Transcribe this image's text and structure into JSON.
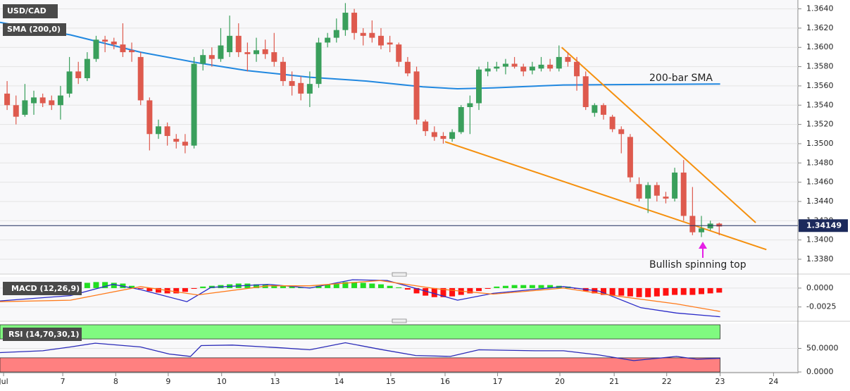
{
  "chart_data": [
    {
      "type": "candlestick",
      "title": "USD/CAD",
      "x": [
        0,
        1,
        2,
        3,
        4,
        5,
        6,
        7,
        8,
        9,
        10,
        11,
        12,
        13,
        14,
        15,
        16,
        17,
        18,
        19,
        20,
        21,
        22,
        23,
        24,
        25,
        26,
        27,
        28,
        29,
        30,
        31,
        32,
        33,
        34,
        35,
        36,
        37,
        38,
        39,
        40,
        41,
        42,
        43,
        44,
        45,
        46,
        47,
        48,
        49,
        50,
        51,
        52,
        53,
        54,
        55,
        56,
        57,
        58,
        59,
        60,
        61,
        62,
        63,
        64,
        65,
        66,
        67,
        68,
        69,
        70,
        71,
        72,
        73,
        74,
        75,
        76,
        77,
        78,
        79,
        80
      ],
      "open": [
        1.3552,
        1.354,
        1.353,
        1.3542,
        1.3548,
        1.3545,
        1.354,
        1.3552,
        1.3575,
        1.3568,
        1.3588,
        1.3608,
        1.3606,
        1.3603,
        1.3597,
        1.359,
        1.3545,
        1.351,
        1.3518,
        1.3505,
        1.3502,
        1.3498,
        1.3583,
        1.3592,
        1.3588,
        1.3595,
        1.3612,
        1.3595,
        1.3593,
        1.3598,
        1.3595,
        1.3585,
        1.3565,
        1.3563,
        1.3552,
        1.3562,
        1.3605,
        1.361,
        1.3618,
        1.3636,
        1.3615,
        1.3615,
        1.3612,
        1.3605,
        1.3603,
        1.3585,
        1.3575,
        1.3523,
        1.3512,
        1.3508,
        1.3505,
        1.3512,
        1.3538,
        1.3542,
        1.3575,
        1.3578,
        1.358,
        1.3583,
        1.358,
        1.3576,
        1.3578,
        1.3582,
        1.3578,
        1.359,
        1.3585,
        1.357,
        1.3532,
        1.354,
        1.3528,
        1.3515,
        1.3507,
        1.3458,
        1.3443,
        1.3457,
        1.3445,
        1.3443,
        1.347,
        1.3425,
        1.3408,
        1.3412,
        1.3417
      ],
      "high": [
        1.3565,
        1.355,
        1.3562,
        1.3555,
        1.3552,
        1.355,
        1.356,
        1.359,
        1.3585,
        1.3595,
        1.3612,
        1.3612,
        1.361,
        1.3625,
        1.3605,
        1.3595,
        1.3548,
        1.3525,
        1.3522,
        1.351,
        1.351,
        1.359,
        1.3598,
        1.36,
        1.362,
        1.3633,
        1.3625,
        1.3605,
        1.361,
        1.3608,
        1.3615,
        1.359,
        1.3575,
        1.357,
        1.3575,
        1.361,
        1.3615,
        1.363,
        1.3646,
        1.364,
        1.362,
        1.3628,
        1.362,
        1.3612,
        1.3605,
        1.359,
        1.358,
        1.3525,
        1.3518,
        1.3512,
        1.3515,
        1.354,
        1.355,
        1.358,
        1.3585,
        1.3585,
        1.3588,
        1.359,
        1.3583,
        1.3585,
        1.359,
        1.3588,
        1.3602,
        1.3595,
        1.359,
        1.3575,
        1.3542,
        1.3542,
        1.353,
        1.3518,
        1.351,
        1.3465,
        1.346,
        1.346,
        1.345,
        1.3475,
        1.3483,
        1.3455,
        1.3425,
        1.342,
        1.3418
      ],
      "low": [
        1.3535,
        1.352,
        1.3528,
        1.353,
        1.3538,
        1.3535,
        1.3525,
        1.3548,
        1.3562,
        1.3565,
        1.3585,
        1.3595,
        1.3598,
        1.359,
        1.3585,
        1.354,
        1.3493,
        1.3505,
        1.3498,
        1.3495,
        1.349,
        1.3495,
        1.3576,
        1.358,
        1.3585,
        1.359,
        1.359,
        1.3575,
        1.3585,
        1.3588,
        1.358,
        1.356,
        1.355,
        1.3545,
        1.3538,
        1.3558,
        1.36,
        1.3605,
        1.3612,
        1.3608,
        1.3602,
        1.3605,
        1.3598,
        1.3595,
        1.358,
        1.357,
        1.352,
        1.3508,
        1.3503,
        1.35,
        1.3502,
        1.351,
        1.351,
        1.3535,
        1.357,
        1.3575,
        1.3572,
        1.3578,
        1.357,
        1.3572,
        1.3575,
        1.3575,
        1.3575,
        1.358,
        1.3555,
        1.3535,
        1.3528,
        1.3525,
        1.3512,
        1.349,
        1.346,
        1.344,
        1.3428,
        1.344,
        1.3438,
        1.344,
        1.342,
        1.3405,
        1.3403,
        1.341,
        1.3405
      ],
      "close": [
        1.354,
        1.3528,
        1.3545,
        1.3548,
        1.3542,
        1.354,
        1.355,
        1.3575,
        1.3568,
        1.3588,
        1.3608,
        1.3606,
        1.3603,
        1.3595,
        1.3595,
        1.3545,
        1.351,
        1.3518,
        1.3508,
        1.3502,
        1.3498,
        1.3583,
        1.3592,
        1.3588,
        1.3602,
        1.3612,
        1.3595,
        1.3593,
        1.3597,
        1.3593,
        1.3585,
        1.3565,
        1.356,
        1.3552,
        1.3562,
        1.3605,
        1.361,
        1.3618,
        1.3636,
        1.3615,
        1.3612,
        1.361,
        1.3602,
        1.3603,
        1.3585,
        1.3573,
        1.3525,
        1.3513,
        1.3507,
        1.3505,
        1.3512,
        1.3538,
        1.3542,
        1.3577,
        1.3578,
        1.358,
        1.3583,
        1.358,
        1.3575,
        1.358,
        1.3582,
        1.3578,
        1.359,
        1.3585,
        1.357,
        1.3538,
        1.354,
        1.353,
        1.3515,
        1.351,
        1.3465,
        1.3443,
        1.3457,
        1.3446,
        1.3443,
        1.347,
        1.3425,
        1.3408,
        1.3412,
        1.3417,
        1.3414
      ],
      "up_color": "#3a9f5c",
      "down_color": "#de5a4e",
      "xlim": [
        -0.8,
        88.6
      ],
      "ylim": [
        1.3369,
        1.3647
      ],
      "yticks": [
        {
          "value": 1.338,
          "label": "1.3380"
        },
        {
          "value": 1.34,
          "label": "1.3400"
        },
        {
          "value": 1.342,
          "label": "1.3420"
        },
        {
          "value": 1.344,
          "label": "1.3440"
        },
        {
          "value": 1.346,
          "label": "1.3460"
        },
        {
          "value": 1.348,
          "label": "1.3480"
        },
        {
          "value": 1.35,
          "label": "1.3500"
        },
        {
          "value": 1.352,
          "label": "1.3520"
        },
        {
          "value": 1.354,
          "label": "1.3540"
        },
        {
          "value": 1.356,
          "label": "1.3560"
        },
        {
          "value": 1.358,
          "label": "1.3580"
        },
        {
          "value": 1.36,
          "label": "1.3600"
        },
        {
          "value": 1.362,
          "label": "1.3620"
        },
        {
          "value": 1.364,
          "label": "1.3640"
        }
      ],
      "grid": true,
      "overlay": {
        "name": "SMA (200,0)",
        "color": "#2188e0",
        "x": [
          -0.8,
          7.1,
          15.0,
          21.4,
          26.9,
          34.0,
          40.4,
          46.7,
          50.6,
          54.6,
          62.5,
          80.1
        ],
        "values": [
          1.3626,
          1.3613,
          1.3595,
          1.3584,
          1.3576,
          1.3569,
          1.3565,
          1.3559,
          1.3557,
          1.3558,
          1.3561,
          1.3562
        ]
      },
      "trendlines": [
        {
          "color": "#f5900e",
          "x": [
            62.3,
            84.1
          ],
          "values": [
            1.36,
            1.3418
          ]
        },
        {
          "color": "#f5900e",
          "x": [
            49.2,
            85.3
          ],
          "values": [
            1.3502,
            1.339
          ]
        }
      ],
      "last_price": {
        "value": 1.34149,
        "color": "#1c2a5c"
      },
      "annotations": [
        {
          "text": "200-bar SMA",
          "color": "#2188e0"
        },
        {
          "text": "Bullish spinning top",
          "color": "#e61ee6"
        }
      ]
    },
    {
      "type": "macd",
      "title": "MACD (12,26,9)",
      "x": [
        0,
        1,
        2,
        3,
        4,
        5,
        6,
        7,
        8,
        9,
        10,
        11,
        12,
        13,
        14,
        15,
        16,
        17,
        18,
        19,
        20,
        21,
        22,
        23,
        24,
        25,
        26,
        27,
        28,
        29,
        30,
        31,
        32,
        33,
        34,
        35,
        36,
        37,
        38,
        39,
        40,
        41,
        42,
        43,
        44,
        45,
        46,
        47,
        48,
        49,
        50,
        51,
        52,
        53,
        54,
        55,
        56,
        57,
        58,
        59,
        60,
        61,
        62,
        63,
        64,
        65,
        66,
        67,
        68,
        69,
        70,
        71,
        72,
        73,
        74,
        75,
        76,
        77,
        78,
        79,
        80
      ],
      "histogram": [
        0.0001,
        0.0001,
        0.0001,
        0.0002,
        0.0002,
        0.0003,
        0.0004,
        0.0005,
        0.0006,
        0.0007,
        0.0008,
        0.0008,
        0.0007,
        0.0006,
        0.0003,
        -0.0001,
        -0.0004,
        -0.0006,
        -0.0007,
        -0.0007,
        -0.0005,
        -0.0001,
        0.0002,
        0.0003,
        0.0004,
        0.0005,
        0.0006,
        0.0006,
        0.0005,
        0.0005,
        0.0004,
        0.0003,
        0.0002,
        0.0001,
        0.0001,
        0.0003,
        0.0005,
        0.0006,
        0.0008,
        0.0008,
        0.0007,
        0.0006,
        0.0005,
        0.0003,
        0.0001,
        -0.0002,
        -0.0007,
        -0.001,
        -0.0012,
        -0.0012,
        -0.0011,
        -0.0009,
        -0.0007,
        -0.0004,
        -0.0001,
        0.0002,
        0.0003,
        0.0004,
        0.0004,
        0.0004,
        0.0004,
        0.0004,
        0.0003,
        0.0002,
        -0.0001,
        -0.0004,
        -0.0007,
        -0.0009,
        -0.001,
        -0.001,
        -0.0011,
        -0.0012,
        -0.0012,
        -0.0011,
        -0.001,
        -0.0009,
        -0.0009,
        -0.0009,
        -0.0008,
        -0.0007,
        -0.0006
      ],
      "up_color": "#22dd22",
      "down_color": "#ff1111",
      "series": [
        {
          "color": "#2a2ac8",
          "x": [
            -0.8,
            7.1,
            11.9,
            15.0,
            20.2,
            22.9,
            29.3,
            34.0,
            38.8,
            42.7,
            46.7,
            50.6,
            54.6,
            62.5,
            66.5,
            71.2,
            75.2,
            80.1
          ],
          "values": [
            -0.0017,
            -0.001,
            0.0005,
            -0.0002,
            -0.0018,
            0.0001,
            0.0005,
            0.0,
            0.0011,
            0.001,
            -0.0003,
            -0.0016,
            -0.0007,
            0.0002,
            -0.0004,
            -0.0026,
            -0.0033,
            -0.0038
          ]
        },
        {
          "color": "#ff7a1a",
          "x": [
            -0.8,
            7.1,
            15.0,
            21.4,
            29.3,
            34.0,
            41.9,
            48.3,
            54.6,
            62.5,
            68.8,
            75.2,
            80.1
          ],
          "values": [
            -0.0018,
            -0.0016,
            0.0002,
            -0.0009,
            0.0003,
            0.0003,
            0.001,
            -0.0001,
            -0.0008,
            0.0,
            -0.0011,
            -0.0021,
            -0.0031
          ]
        }
      ],
      "xlim": [
        -0.8,
        88.6
      ],
      "ylim": [
        -0.0043,
        0.0013
      ],
      "yticks": [
        {
          "value": -0.0025,
          "label": "-0.0025"
        },
        {
          "value": 0,
          "label": "0.0000"
        }
      ],
      "grid": true
    },
    {
      "type": "rsi",
      "title": "RSI (14,70,30,1)",
      "bands": [
        {
          "range": [
            70,
            100
          ],
          "color": "#80fa80"
        },
        {
          "range": [
            0,
            30
          ],
          "color": "#ff8080"
        }
      ],
      "series": [
        {
          "color": "#2a2ab8",
          "x": [
            -0.8,
            4.0,
            7.1,
            9.9,
            15.0,
            18.2,
            20.6,
            21.8,
            25.3,
            30.9,
            34.0,
            38.0,
            41.9,
            45.9,
            49.8,
            53.0,
            59.3,
            62.5,
            66.5,
            70.4,
            75.2,
            77.5,
            80.1
          ],
          "values": [
            41,
            45,
            53,
            61,
            53,
            38,
            33,
            56,
            57,
            51,
            47,
            62,
            48,
            35,
            33,
            47,
            45,
            45,
            36,
            24,
            33,
            27,
            29
          ]
        }
      ],
      "xlim": [
        -0.8,
        88.6
      ],
      "ylim": [
        0,
        100
      ],
      "yticks": [
        {
          "value": 0,
          "label": "0.0000"
        },
        {
          "value": 50,
          "label": "50.0000"
        }
      ],
      "xticks": [
        {
          "value": -0.4,
          "label": "Jul"
        },
        {
          "value": 6.25,
          "label": "7"
        },
        {
          "value": 12.2,
          "label": "8"
        },
        {
          "value": 18.1,
          "label": "9"
        },
        {
          "value": 24.1,
          "label": "10"
        },
        {
          "value": 30.1,
          "label": "13"
        },
        {
          "value": 37.3,
          "label": "14"
        },
        {
          "value": 43.1,
          "label": "15"
        },
        {
          "value": 49.2,
          "label": "16"
        },
        {
          "value": 55.1,
          "label": "17"
        },
        {
          "value": 62.1,
          "label": "20"
        },
        {
          "value": 68.2,
          "label": "21"
        },
        {
          "value": 74.1,
          "label": "22"
        },
        {
          "value": 80.1,
          "label": "23"
        },
        {
          "value": 86.1,
          "label": "24"
        }
      ],
      "grid": true
    }
  ]
}
